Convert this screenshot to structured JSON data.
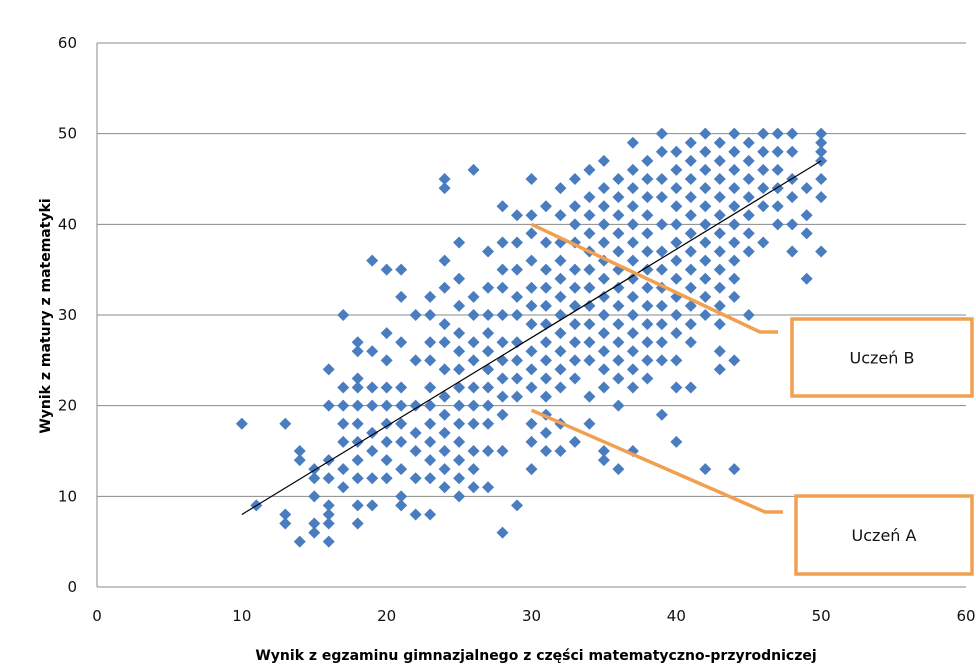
{
  "chart_data": {
    "type": "scatter",
    "title": "",
    "xlabel": "Wynik z egzaminu gimnazjalnego  z części matematyczno-przyrodniczej",
    "ylabel": "Wynik  z  matury z  matematyki",
    "xlim": [
      0,
      60
    ],
    "ylim": [
      0,
      60
    ],
    "x_ticks": [
      0,
      10,
      20,
      30,
      40,
      50,
      60
    ],
    "y_ticks": [
      0,
      10,
      20,
      30,
      40,
      50,
      60
    ],
    "grid": "horizontal",
    "marker": "diamond",
    "colors": {
      "points": "#4a7dbf",
      "trend": "#000000",
      "callout": "#f0a050"
    },
    "points": [
      [
        10,
        18
      ],
      [
        11,
        9
      ],
      [
        13,
        18
      ],
      [
        13,
        8
      ],
      [
        13,
        7
      ],
      [
        14,
        15
      ],
      [
        14,
        14
      ],
      [
        14,
        5
      ],
      [
        15,
        13
      ],
      [
        15,
        12
      ],
      [
        15,
        10
      ],
      [
        15,
        7
      ],
      [
        15,
        6
      ],
      [
        16,
        14
      ],
      [
        16,
        9
      ],
      [
        16,
        8
      ],
      [
        16,
        7
      ],
      [
        16,
        5
      ],
      [
        16,
        12
      ],
      [
        16,
        20
      ],
      [
        16,
        24
      ],
      [
        17,
        30
      ],
      [
        17,
        22
      ],
      [
        17,
        20
      ],
      [
        17,
        18
      ],
      [
        17,
        16
      ],
      [
        17,
        13
      ],
      [
        17,
        11
      ],
      [
        18,
        27
      ],
      [
        18,
        26
      ],
      [
        18,
        23
      ],
      [
        18,
        22
      ],
      [
        18,
        20
      ],
      [
        18,
        18
      ],
      [
        18,
        16
      ],
      [
        18,
        14
      ],
      [
        18,
        12
      ],
      [
        18,
        9
      ],
      [
        18,
        7
      ],
      [
        19,
        36
      ],
      [
        19,
        26
      ],
      [
        19,
        22
      ],
      [
        19,
        20
      ],
      [
        19,
        17
      ],
      [
        19,
        15
      ],
      [
        19,
        12
      ],
      [
        19,
        9
      ],
      [
        20,
        35
      ],
      [
        20,
        28
      ],
      [
        20,
        25
      ],
      [
        20,
        22
      ],
      [
        20,
        20
      ],
      [
        20,
        18
      ],
      [
        20,
        16
      ],
      [
        20,
        14
      ],
      [
        20,
        12
      ],
      [
        21,
        35
      ],
      [
        21,
        32
      ],
      [
        21,
        27
      ],
      [
        21,
        22
      ],
      [
        21,
        20
      ],
      [
        21,
        18
      ],
      [
        21,
        16
      ],
      [
        21,
        13
      ],
      [
        21,
        10
      ],
      [
        21,
        9
      ],
      [
        22,
        30
      ],
      [
        22,
        25
      ],
      [
        22,
        20
      ],
      [
        22,
        17
      ],
      [
        22,
        15
      ],
      [
        22,
        12
      ],
      [
        22,
        8
      ],
      [
        23,
        32
      ],
      [
        23,
        30
      ],
      [
        23,
        27
      ],
      [
        23,
        25
      ],
      [
        23,
        22
      ],
      [
        23,
        20
      ],
      [
        23,
        18
      ],
      [
        23,
        16
      ],
      [
        23,
        14
      ],
      [
        23,
        12
      ],
      [
        23,
        8
      ],
      [
        24,
        45
      ],
      [
        24,
        44
      ],
      [
        24,
        36
      ],
      [
        24,
        33
      ],
      [
        24,
        29
      ],
      [
        24,
        27
      ],
      [
        24,
        24
      ],
      [
        24,
        21
      ],
      [
        24,
        19
      ],
      [
        24,
        17
      ],
      [
        24,
        15
      ],
      [
        24,
        13
      ],
      [
        24,
        11
      ],
      [
        25,
        38
      ],
      [
        25,
        34
      ],
      [
        25,
        31
      ],
      [
        25,
        28
      ],
      [
        25,
        26
      ],
      [
        25,
        24
      ],
      [
        25,
        22
      ],
      [
        25,
        20
      ],
      [
        25,
        18
      ],
      [
        25,
        16
      ],
      [
        25,
        14
      ],
      [
        25,
        12
      ],
      [
        25,
        10
      ],
      [
        26,
        46
      ],
      [
        26,
        32
      ],
      [
        26,
        30
      ],
      [
        26,
        27
      ],
      [
        26,
        25
      ],
      [
        26,
        22
      ],
      [
        26,
        20
      ],
      [
        26,
        18
      ],
      [
        26,
        15
      ],
      [
        26,
        13
      ],
      [
        26,
        11
      ],
      [
        27,
        37
      ],
      [
        27,
        33
      ],
      [
        27,
        30
      ],
      [
        27,
        28
      ],
      [
        27,
        26
      ],
      [
        27,
        24
      ],
      [
        27,
        22
      ],
      [
        27,
        20
      ],
      [
        27,
        18
      ],
      [
        27,
        15
      ],
      [
        27,
        11
      ],
      [
        28,
        42
      ],
      [
        28,
        38
      ],
      [
        28,
        35
      ],
      [
        28,
        33
      ],
      [
        28,
        30
      ],
      [
        28,
        27
      ],
      [
        28,
        25
      ],
      [
        28,
        23
      ],
      [
        28,
        21
      ],
      [
        28,
        19
      ],
      [
        28,
        15
      ],
      [
        28,
        6
      ],
      [
        29,
        41
      ],
      [
        29,
        38
      ],
      [
        29,
        35
      ],
      [
        29,
        32
      ],
      [
        29,
        30
      ],
      [
        29,
        27
      ],
      [
        29,
        25
      ],
      [
        29,
        23
      ],
      [
        29,
        21
      ],
      [
        29,
        9
      ],
      [
        30,
        45
      ],
      [
        30,
        41
      ],
      [
        30,
        39
      ],
      [
        30,
        36
      ],
      [
        30,
        33
      ],
      [
        30,
        31
      ],
      [
        30,
        29
      ],
      [
        30,
        26
      ],
      [
        30,
        24
      ],
      [
        30,
        22
      ],
      [
        30,
        18
      ],
      [
        30,
        16
      ],
      [
        30,
        13
      ],
      [
        31,
        42
      ],
      [
        31,
        38
      ],
      [
        31,
        35
      ],
      [
        31,
        33
      ],
      [
        31,
        31
      ],
      [
        31,
        29
      ],
      [
        31,
        27
      ],
      [
        31,
        25
      ],
      [
        31,
        23
      ],
      [
        31,
        21
      ],
      [
        31,
        19
      ],
      [
        31,
        17
      ],
      [
        31,
        15
      ],
      [
        32,
        44
      ],
      [
        32,
        41
      ],
      [
        32,
        38
      ],
      [
        32,
        36
      ],
      [
        32,
        34
      ],
      [
        32,
        32
      ],
      [
        32,
        30
      ],
      [
        32,
        28
      ],
      [
        32,
        26
      ],
      [
        32,
        24
      ],
      [
        32,
        22
      ],
      [
        32,
        18
      ],
      [
        32,
        15
      ],
      [
        33,
        45
      ],
      [
        33,
        42
      ],
      [
        33,
        40
      ],
      [
        33,
        38
      ],
      [
        33,
        35
      ],
      [
        33,
        33
      ],
      [
        33,
        31
      ],
      [
        33,
        29
      ],
      [
        33,
        27
      ],
      [
        33,
        25
      ],
      [
        33,
        23
      ],
      [
        33,
        16
      ],
      [
        34,
        46
      ],
      [
        34,
        43
      ],
      [
        34,
        41
      ],
      [
        34,
        39
      ],
      [
        34,
        37
      ],
      [
        34,
        35
      ],
      [
        34,
        33
      ],
      [
        34,
        31
      ],
      [
        34,
        29
      ],
      [
        34,
        27
      ],
      [
        34,
        25
      ],
      [
        34,
        21
      ],
      [
        34,
        18
      ],
      [
        35,
        47
      ],
      [
        35,
        44
      ],
      [
        35,
        42
      ],
      [
        35,
        40
      ],
      [
        35,
        38
      ],
      [
        35,
        36
      ],
      [
        35,
        34
      ],
      [
        35,
        32
      ],
      [
        35,
        30
      ],
      [
        35,
        28
      ],
      [
        35,
        26
      ],
      [
        35,
        24
      ],
      [
        35,
        22
      ],
      [
        35,
        15
      ],
      [
        35,
        14
      ],
      [
        36,
        45
      ],
      [
        36,
        43
      ],
      [
        36,
        41
      ],
      [
        36,
        39
      ],
      [
        36,
        37
      ],
      [
        36,
        35
      ],
      [
        36,
        33
      ],
      [
        36,
        31
      ],
      [
        36,
        29
      ],
      [
        36,
        27
      ],
      [
        36,
        25
      ],
      [
        36,
        23
      ],
      [
        36,
        20
      ],
      [
        36,
        13
      ],
      [
        37,
        49
      ],
      [
        37,
        46
      ],
      [
        37,
        44
      ],
      [
        37,
        42
      ],
      [
        37,
        40
      ],
      [
        37,
        38
      ],
      [
        37,
        36
      ],
      [
        37,
        34
      ],
      [
        37,
        32
      ],
      [
        37,
        30
      ],
      [
        37,
        28
      ],
      [
        37,
        26
      ],
      [
        37,
        24
      ],
      [
        37,
        22
      ],
      [
        37,
        15
      ],
      [
        38,
        47
      ],
      [
        38,
        45
      ],
      [
        38,
        43
      ],
      [
        38,
        41
      ],
      [
        38,
        39
      ],
      [
        38,
        37
      ],
      [
        38,
        35
      ],
      [
        38,
        33
      ],
      [
        38,
        31
      ],
      [
        38,
        29
      ],
      [
        38,
        27
      ],
      [
        38,
        25
      ],
      [
        38,
        23
      ],
      [
        39,
        50
      ],
      [
        39,
        48
      ],
      [
        39,
        45
      ],
      [
        39,
        43
      ],
      [
        39,
        40
      ],
      [
        39,
        37
      ],
      [
        39,
        35
      ],
      [
        39,
        33
      ],
      [
        39,
        31
      ],
      [
        39,
        29
      ],
      [
        39,
        27
      ],
      [
        39,
        25
      ],
      [
        39,
        19
      ],
      [
        40,
        48
      ],
      [
        40,
        46
      ],
      [
        40,
        44
      ],
      [
        40,
        42
      ],
      [
        40,
        40
      ],
      [
        40,
        38
      ],
      [
        40,
        36
      ],
      [
        40,
        34
      ],
      [
        40,
        32
      ],
      [
        40,
        30
      ],
      [
        40,
        28
      ],
      [
        40,
        25
      ],
      [
        40,
        22
      ],
      [
        40,
        16
      ],
      [
        41,
        49
      ],
      [
        41,
        47
      ],
      [
        41,
        45
      ],
      [
        41,
        43
      ],
      [
        41,
        41
      ],
      [
        41,
        39
      ],
      [
        41,
        37
      ],
      [
        41,
        35
      ],
      [
        41,
        33
      ],
      [
        41,
        31
      ],
      [
        41,
        29
      ],
      [
        41,
        27
      ],
      [
        41,
        22
      ],
      [
        42,
        50
      ],
      [
        42,
        48
      ],
      [
        42,
        46
      ],
      [
        42,
        44
      ],
      [
        42,
        42
      ],
      [
        42,
        40
      ],
      [
        42,
        38
      ],
      [
        42,
        36
      ],
      [
        42,
        34
      ],
      [
        42,
        32
      ],
      [
        42,
        30
      ],
      [
        42,
        13
      ],
      [
        43,
        49
      ],
      [
        43,
        47
      ],
      [
        43,
        45
      ],
      [
        43,
        43
      ],
      [
        43,
        41
      ],
      [
        43,
        39
      ],
      [
        43,
        37
      ],
      [
        43,
        35
      ],
      [
        43,
        33
      ],
      [
        43,
        31
      ],
      [
        43,
        29
      ],
      [
        43,
        26
      ],
      [
        43,
        24
      ],
      [
        44,
        50
      ],
      [
        44,
        48
      ],
      [
        44,
        46
      ],
      [
        44,
        44
      ],
      [
        44,
        42
      ],
      [
        44,
        40
      ],
      [
        44,
        38
      ],
      [
        44,
        36
      ],
      [
        44,
        34
      ],
      [
        44,
        32
      ],
      [
        44,
        25
      ],
      [
        44,
        13
      ],
      [
        45,
        49
      ],
      [
        45,
        47
      ],
      [
        45,
        45
      ],
      [
        45,
        43
      ],
      [
        45,
        41
      ],
      [
        45,
        39
      ],
      [
        45,
        37
      ],
      [
        45,
        30
      ],
      [
        46,
        50
      ],
      [
        46,
        48
      ],
      [
        46,
        46
      ],
      [
        46,
        44
      ],
      [
        46,
        42
      ],
      [
        46,
        38
      ],
      [
        47,
        50
      ],
      [
        47,
        48
      ],
      [
        47,
        46
      ],
      [
        47,
        44
      ],
      [
        47,
        42
      ],
      [
        47,
        40
      ],
      [
        48,
        50
      ],
      [
        48,
        48
      ],
      [
        48,
        45
      ],
      [
        48,
        43
      ],
      [
        48,
        40
      ],
      [
        48,
        37
      ],
      [
        49,
        44
      ],
      [
        49,
        41
      ],
      [
        49,
        39
      ],
      [
        49,
        34
      ],
      [
        50,
        50
      ],
      [
        50,
        49
      ],
      [
        50,
        48
      ],
      [
        50,
        47
      ],
      [
        50,
        45
      ],
      [
        50,
        43
      ],
      [
        50,
        37
      ]
    ],
    "trendline": {
      "x": [
        10,
        50
      ],
      "y": [
        8,
        47
      ]
    },
    "annotations": [
      {
        "label": "Uczeń B",
        "point": [
          30,
          40
        ]
      },
      {
        "label": "Uczeń A",
        "point": [
          30,
          19.5
        ]
      }
    ]
  }
}
